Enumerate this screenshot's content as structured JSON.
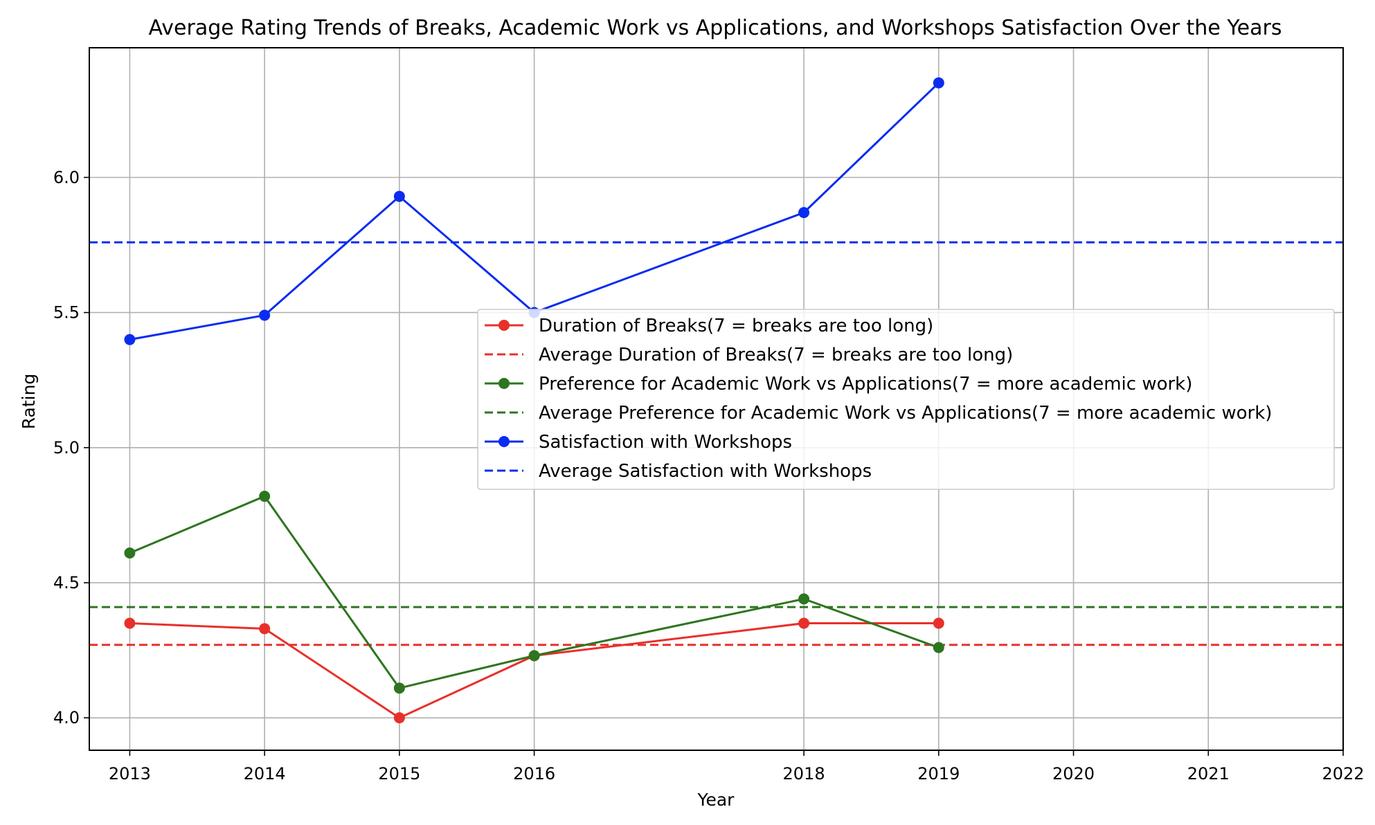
{
  "chart_data": {
    "type": "line",
    "title": "Average Rating Trends of Breaks, Academic Work vs Applications, and Workshops Satisfaction Over the Years",
    "xlabel": "Year",
    "ylabel": "Rating",
    "xlim": [
      2012.7,
      2022
    ],
    "ylim": [
      3.88,
      6.48
    ],
    "xticks": [
      2013,
      2014,
      2015,
      2016,
      2018,
      2019,
      2020,
      2021,
      2022
    ],
    "yticks": [
      4.0,
      4.5,
      5.0,
      5.5,
      6.0
    ],
    "ytick_labels": [
      "4.0",
      "4.5",
      "5.0",
      "5.5",
      "6.0"
    ],
    "grid": true,
    "legend_position": "center-right",
    "series": [
      {
        "name": "Duration of Breaks(7 = breaks are too long)",
        "color": "#e8302a",
        "style": "solid-marker",
        "x": [
          2013,
          2014,
          2015,
          2016,
          2018,
          2019
        ],
        "y": [
          4.35,
          4.33,
          4.0,
          4.23,
          4.35,
          4.35
        ]
      },
      {
        "name": "Average Duration of Breaks(7 = breaks are too long)",
        "color": "#e8302a",
        "style": "dashed",
        "value": 4.27
      },
      {
        "name": "Preference for Academic Work vs Applications(7 = more academic work)",
        "color": "#2e7520",
        "style": "solid-marker",
        "x": [
          2013,
          2014,
          2015,
          2016,
          2018,
          2019
        ],
        "y": [
          4.61,
          4.82,
          4.11,
          4.23,
          4.44,
          4.26
        ]
      },
      {
        "name": "Average Preference for Academic Work vs Applications(7 = more academic work)",
        "color": "#2e7520",
        "style": "dashed",
        "value": 4.41
      },
      {
        "name": "Satisfaction with Workshops",
        "color": "#0a2cf0",
        "style": "solid-marker",
        "x": [
          2013,
          2014,
          2015,
          2016,
          2018,
          2019
        ],
        "y": [
          5.4,
          5.49,
          5.93,
          5.5,
          5.87,
          6.35
        ]
      },
      {
        "name": "Average Satisfaction with Workshops",
        "color": "#0a2cf0",
        "style": "dashed",
        "value": 5.76
      }
    ]
  }
}
